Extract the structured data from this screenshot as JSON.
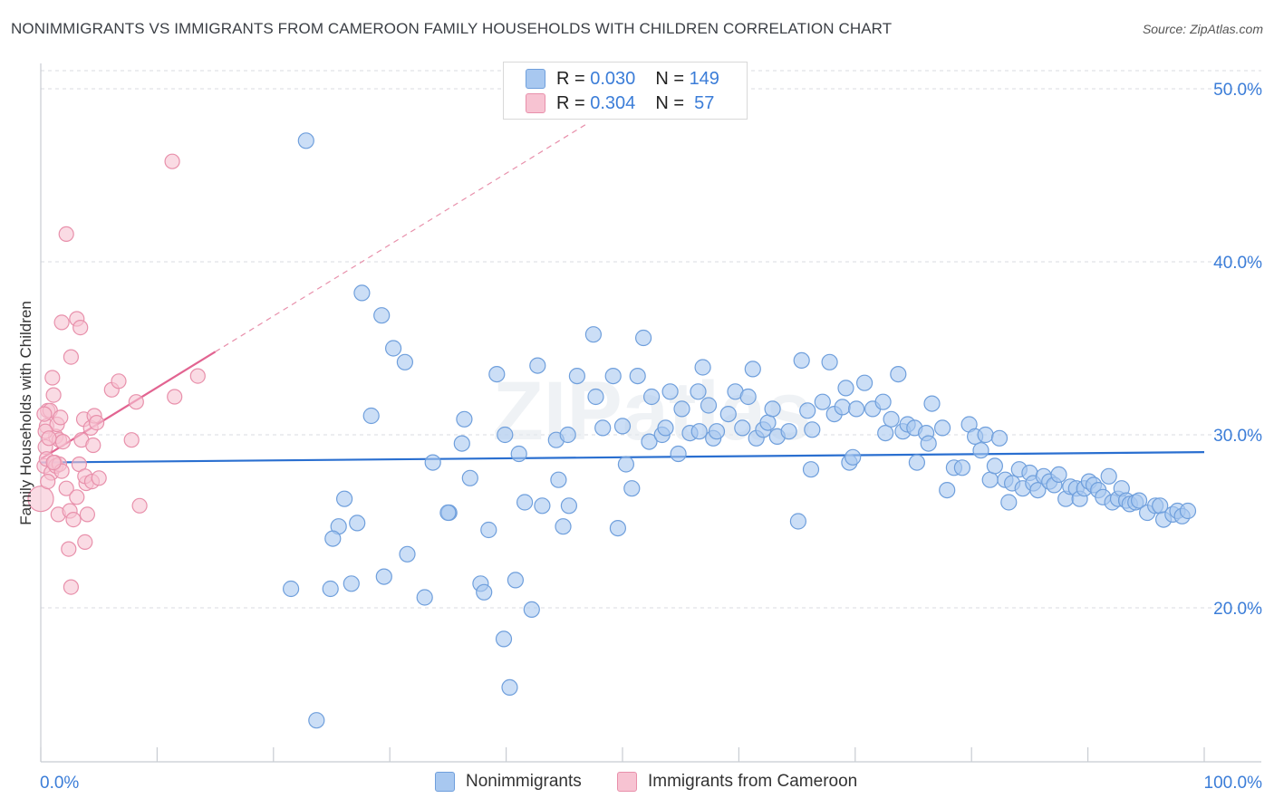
{
  "title": "NONIMMIGRANTS VS IMMIGRANTS FROM CAMEROON FAMILY HOUSEHOLDS WITH CHILDREN CORRELATION CHART",
  "source": "Source: ZipAtlas.com",
  "watermark": "ZIPatlas",
  "colors": {
    "blue_fill": "#a8c8f0",
    "blue_stroke": "#6f9fdc",
    "blue_line": "#2a6fd0",
    "pink_fill": "#f7c3d2",
    "pink_stroke": "#e890ab",
    "pink_line": "#e26491",
    "axis_text": "#3b7dd8"
  },
  "legend_top": {
    "rows": [
      {
        "r_label": "R = ",
        "r_value": "0.030",
        "n_label": "N = ",
        "n_value": "149"
      },
      {
        "r_label": "R = ",
        "r_value": "0.304",
        "n_label": "N = ",
        "n_value": " 57"
      }
    ]
  },
  "legend_bottom": {
    "items": [
      "Nonimmigrants",
      "Immigrants from Cameroon"
    ]
  },
  "chart_data": {
    "type": "scatter",
    "title": "NONIMMIGRANTS VS IMMIGRANTS FROM CAMEROON FAMILY HOUSEHOLDS WITH CHILDREN CORRELATION CHART",
    "xlabel": "",
    "ylabel": "Family Households with Children",
    "xlim": [
      0,
      100
    ],
    "ylim": [
      10,
      52
    ],
    "x_tick_labels": [
      "0.0%",
      "100.0%"
    ],
    "y_ticks": [
      20,
      30,
      40,
      50
    ],
    "y_tick_labels": [
      "20.0%",
      "30.0%",
      "40.0%",
      "50.0%"
    ],
    "grid": true,
    "legend_position": "top-center",
    "series": [
      {
        "name": "Nonimmigrants",
        "r": 0.03,
        "n": 149,
        "trend": {
          "x": [
            0,
            100
          ],
          "y": [
            28.4,
            29.0
          ]
        },
        "points": [
          [
            22.8,
            47
          ],
          [
            27.6,
            38.2
          ],
          [
            29.3,
            36.9
          ],
          [
            30.3,
            35
          ],
          [
            31.3,
            34.2
          ],
          [
            28.4,
            31.1
          ],
          [
            31.5,
            23.1
          ],
          [
            26.1,
            26.3
          ],
          [
            25.6,
            24.7
          ],
          [
            27.2,
            24.9
          ],
          [
            25.1,
            24
          ],
          [
            24.9,
            21.1
          ],
          [
            26.7,
            21.4
          ],
          [
            21.5,
            21.1
          ],
          [
            29.5,
            21.8
          ],
          [
            23.7,
            13.5
          ],
          [
            33,
            20.6
          ],
          [
            33.7,
            28.4
          ],
          [
            35.1,
            25.5
          ],
          [
            35,
            25.5
          ],
          [
            36.2,
            29.5
          ],
          [
            36.4,
            30.9
          ],
          [
            36.9,
            27.5
          ],
          [
            37.8,
            21.4
          ],
          [
            38.1,
            20.9
          ],
          [
            38.5,
            24.5
          ],
          [
            39.2,
            33.5
          ],
          [
            39.8,
            18.2
          ],
          [
            39.9,
            30
          ],
          [
            40.3,
            15.4
          ],
          [
            40.8,
            21.6
          ],
          [
            41.1,
            28.9
          ],
          [
            41.6,
            26.1
          ],
          [
            42.2,
            19.9
          ],
          [
            42.7,
            34
          ],
          [
            43.1,
            25.9
          ],
          [
            44.3,
            29.7
          ],
          [
            44.5,
            27.4
          ],
          [
            44.9,
            24.7
          ],
          [
            45.3,
            30
          ],
          [
            45.4,
            25.9
          ],
          [
            46.1,
            33.4
          ],
          [
            47.5,
            35.8
          ],
          [
            47.7,
            32.2
          ],
          [
            48.3,
            30.4
          ],
          [
            49.2,
            33.4
          ],
          [
            49.6,
            24.6
          ],
          [
            50,
            30.5
          ],
          [
            50.3,
            28.3
          ],
          [
            50.8,
            26.9
          ],
          [
            51.3,
            33.4
          ],
          [
            51.8,
            35.6
          ],
          [
            52.3,
            29.6
          ],
          [
            52.5,
            32.2
          ],
          [
            53.4,
            30
          ],
          [
            53.7,
            30.4
          ],
          [
            54.1,
            32.5
          ],
          [
            54.8,
            28.9
          ],
          [
            55.1,
            31.5
          ],
          [
            55.8,
            30.1
          ],
          [
            56.6,
            30.2
          ],
          [
            56.5,
            32.5
          ],
          [
            56.9,
            33.9
          ],
          [
            57.4,
            31.7
          ],
          [
            57.8,
            29.8
          ],
          [
            58.1,
            30.2
          ],
          [
            59.1,
            31.2
          ],
          [
            59.7,
            32.5
          ],
          [
            60.3,
            30.4
          ],
          [
            60.8,
            32.2
          ],
          [
            61.2,
            33.8
          ],
          [
            61.5,
            29.8
          ],
          [
            62.1,
            30.3
          ],
          [
            62.5,
            30.7
          ],
          [
            62.9,
            31.5
          ],
          [
            63.3,
            29.9
          ],
          [
            64.3,
            30.2
          ],
          [
            65.1,
            25
          ],
          [
            65.4,
            34.3
          ],
          [
            65.9,
            31.4
          ],
          [
            66.3,
            30.3
          ],
          [
            66.2,
            28
          ],
          [
            67.2,
            31.9
          ],
          [
            67.8,
            34.2
          ],
          [
            68.2,
            31.2
          ],
          [
            68.9,
            31.6
          ],
          [
            69.2,
            32.7
          ],
          [
            69.5,
            28.4
          ],
          [
            69.8,
            28.7
          ],
          [
            70.1,
            31.5
          ],
          [
            70.8,
            33
          ],
          [
            71.5,
            31.5
          ],
          [
            72.4,
            31.9
          ],
          [
            72.6,
            30.1
          ],
          [
            73.1,
            30.9
          ],
          [
            73.7,
            33.5
          ],
          [
            74.1,
            30.2
          ],
          [
            74.5,
            30.6
          ],
          [
            75.1,
            30.4
          ],
          [
            75.3,
            28.4
          ],
          [
            76.1,
            30.1
          ],
          [
            76.3,
            29.5
          ],
          [
            76.6,
            31.8
          ],
          [
            77.5,
            30.4
          ],
          [
            77.9,
            26.8
          ],
          [
            78.5,
            28.1
          ],
          [
            79.2,
            28.1
          ],
          [
            79.8,
            30.6
          ],
          [
            80.3,
            29.9
          ],
          [
            80.8,
            29.1
          ],
          [
            81.2,
            30
          ],
          [
            81.6,
            27.4
          ],
          [
            82,
            28.2
          ],
          [
            82.4,
            29.8
          ],
          [
            82.9,
            27.4
          ],
          [
            83.2,
            26.1
          ],
          [
            83.5,
            27.2
          ],
          [
            84.1,
            28
          ],
          [
            84.4,
            26.9
          ],
          [
            85,
            27.8
          ],
          [
            85.3,
            27.2
          ],
          [
            85.7,
            26.8
          ],
          [
            86.2,
            27.6
          ],
          [
            86.7,
            27.3
          ],
          [
            87.1,
            27.1
          ],
          [
            87.5,
            27.7
          ],
          [
            88.1,
            26.3
          ],
          [
            88.5,
            27
          ],
          [
            89,
            26.9
          ],
          [
            89.3,
            26.3
          ],
          [
            89.7,
            26.9
          ],
          [
            90.1,
            27.3
          ],
          [
            90.5,
            27.1
          ],
          [
            90.9,
            26.8
          ],
          [
            91.3,
            26.4
          ],
          [
            91.8,
            27.6
          ],
          [
            92.1,
            26.1
          ],
          [
            92.6,
            26.3
          ],
          [
            92.9,
            26.9
          ],
          [
            93.3,
            26.2
          ],
          [
            93.6,
            26
          ],
          [
            94.1,
            26.1
          ],
          [
            94.4,
            26.2
          ],
          [
            95.1,
            25.5
          ],
          [
            95.8,
            25.9
          ],
          [
            96.2,
            25.9
          ],
          [
            96.5,
            25.1
          ],
          [
            97.3,
            25.4
          ],
          [
            97.7,
            25.6
          ],
          [
            98.1,
            25.3
          ],
          [
            98.6,
            25.6
          ]
        ]
      },
      {
        "name": "Immigrants from Cameroon",
        "r": 0.304,
        "n": 57,
        "trend": {
          "x": [
            0,
            15
          ],
          "y": [
            28.6,
            34.8
          ]
        },
        "trend_extension": {
          "x": [
            15,
            47
          ],
          "y": [
            34.8,
            48
          ]
        },
        "points": [
          [
            0,
            26.3
          ],
          [
            0.3,
            28.2
          ],
          [
            0.4,
            29.3
          ],
          [
            0.5,
            30.5
          ],
          [
            0.5,
            28.6
          ],
          [
            0.6,
            31.4
          ],
          [
            0.8,
            31.4
          ],
          [
            0.9,
            27.8
          ],
          [
            1,
            33.3
          ],
          [
            1.1,
            32.3
          ],
          [
            1.2,
            28.4
          ],
          [
            1.3,
            29.9
          ],
          [
            1.3,
            28.2
          ],
          [
            1.4,
            30.6
          ],
          [
            1.5,
            25.4
          ],
          [
            1.6,
            29.7
          ],
          [
            1.6,
            28.3
          ],
          [
            1.7,
            31
          ],
          [
            1.8,
            27.9
          ],
          [
            1.8,
            36.5
          ],
          [
            1.9,
            29.6
          ],
          [
            2.2,
            41.6
          ],
          [
            2.2,
            26.9
          ],
          [
            2.4,
            23.4
          ],
          [
            2.5,
            25.6
          ],
          [
            2.6,
            21.2
          ],
          [
            2.6,
            34.5
          ],
          [
            2.8,
            25.1
          ],
          [
            3.1,
            36.7
          ],
          [
            3.1,
            26.4
          ],
          [
            3.3,
            28.3
          ],
          [
            3.4,
            36.2
          ],
          [
            3.5,
            29.7
          ],
          [
            3.7,
            30.9
          ],
          [
            3.9,
            27.2
          ],
          [
            3.8,
            27.6
          ],
          [
            4,
            25.4
          ],
          [
            3.8,
            23.8
          ],
          [
            4.3,
            30.4
          ],
          [
            4.4,
            27.3
          ],
          [
            4.5,
            29.4
          ],
          [
            4.6,
            31.1
          ],
          [
            4.8,
            30.7
          ],
          [
            5,
            27.5
          ],
          [
            6.1,
            32.6
          ],
          [
            6.7,
            33.1
          ],
          [
            7.8,
            29.7
          ],
          [
            8.2,
            31.9
          ],
          [
            8.5,
            25.9
          ],
          [
            11.3,
            45.8
          ],
          [
            11.5,
            32.2
          ],
          [
            13.5,
            33.4
          ],
          [
            0.3,
            31.2
          ],
          [
            0.4,
            30.2
          ],
          [
            0.6,
            27.3
          ],
          [
            0.7,
            29.8
          ],
          [
            1.1,
            28.4
          ]
        ]
      }
    ]
  }
}
